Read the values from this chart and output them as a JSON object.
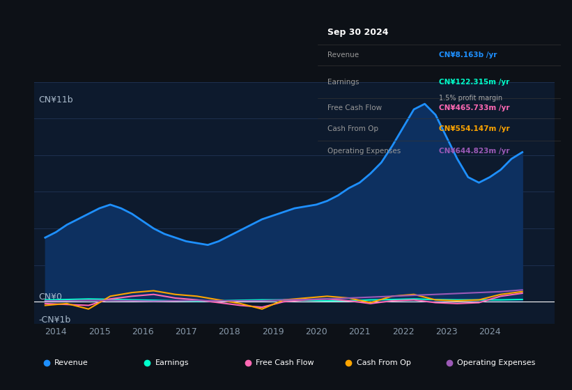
{
  "bg_color": "#0d1117",
  "chart_bg": "#0d1a2d",
  "title": "Sep 30 2024",
  "tooltip": {
    "Revenue": {
      "value": "CN¥8.163b",
      "color": "#1e90ff"
    },
    "Earnings": {
      "value": "CN¥122.315m",
      "color": "#00ffcc"
    },
    "profit_margin": "1.5% profit margin",
    "Free Cash Flow": {
      "value": "CN¥465.733m",
      "color": "#ff69b4"
    },
    "Cash From Op": {
      "value": "CN¥554.147m",
      "color": "#ffa500"
    },
    "Operating Expenses": {
      "value": "CN¥644.823m",
      "color": "#9b59b6"
    }
  },
  "ylim": [
    -1.2,
    12
  ],
  "ylabel_top": "CN¥11b",
  "ylabel_zero": "CN¥0",
  "ylabel_neg": "-CN¥1b",
  "xlim_start": 2013.5,
  "xlim_end": 2025.5,
  "xticks": [
    2014,
    2015,
    2016,
    2017,
    2018,
    2019,
    2020,
    2021,
    2022,
    2023,
    2024
  ],
  "grid_color": "#1e3050",
  "zero_line_color": "#ffffff",
  "legend": [
    {
      "label": "Revenue",
      "color": "#1e90ff"
    },
    {
      "label": "Earnings",
      "color": "#00ffcc"
    },
    {
      "label": "Free Cash Flow",
      "color": "#ff69b4"
    },
    {
      "label": "Cash From Op",
      "color": "#ffa500"
    },
    {
      "label": "Operating Expenses",
      "color": "#9b59b6"
    }
  ],
  "revenue": {
    "x": [
      2013.75,
      2014.0,
      2014.25,
      2014.5,
      2014.75,
      2015.0,
      2015.25,
      2015.5,
      2015.75,
      2016.0,
      2016.25,
      2016.5,
      2016.75,
      2017.0,
      2017.25,
      2017.5,
      2017.75,
      2018.0,
      2018.25,
      2018.5,
      2018.75,
      2019.0,
      2019.25,
      2019.5,
      2019.75,
      2020.0,
      2020.25,
      2020.5,
      2020.75,
      2021.0,
      2021.25,
      2021.5,
      2021.75,
      2022.0,
      2022.25,
      2022.5,
      2022.75,
      2023.0,
      2023.25,
      2023.5,
      2023.75,
      2024.0,
      2024.25,
      2024.5,
      2024.75
    ],
    "y": [
      3.5,
      3.8,
      4.2,
      4.5,
      4.8,
      5.1,
      5.3,
      5.1,
      4.8,
      4.4,
      4.0,
      3.7,
      3.5,
      3.3,
      3.2,
      3.1,
      3.3,
      3.6,
      3.9,
      4.2,
      4.5,
      4.7,
      4.9,
      5.1,
      5.2,
      5.3,
      5.5,
      5.8,
      6.2,
      6.5,
      7.0,
      7.6,
      8.5,
      9.5,
      10.5,
      10.8,
      10.2,
      9.0,
      7.8,
      6.8,
      6.5,
      6.8,
      7.2,
      7.8,
      8.163
    ],
    "color": "#1e90ff",
    "fill_color": "#0d3060",
    "linewidth": 2.0
  },
  "earnings": {
    "x": [
      2013.75,
      2014.25,
      2014.75,
      2015.25,
      2015.75,
      2016.25,
      2016.75,
      2017.25,
      2017.75,
      2018.25,
      2018.75,
      2019.25,
      2019.75,
      2020.25,
      2020.75,
      2021.25,
      2021.75,
      2022.25,
      2022.75,
      2023.25,
      2023.75,
      2024.25,
      2024.75
    ],
    "y": [
      0.1,
      0.12,
      0.15,
      0.13,
      0.1,
      0.08,
      0.05,
      0.03,
      0.05,
      0.08,
      0.1,
      0.1,
      0.08,
      0.05,
      0.05,
      0.1,
      0.12,
      0.15,
      0.12,
      0.1,
      0.1,
      0.1,
      0.122
    ],
    "color": "#00ffcc",
    "linewidth": 1.5
  },
  "free_cash_flow": {
    "x": [
      2013.75,
      2014.25,
      2014.75,
      2015.25,
      2015.75,
      2016.25,
      2016.75,
      2017.25,
      2017.75,
      2018.25,
      2018.75,
      2019.25,
      2019.75,
      2020.25,
      2020.75,
      2021.25,
      2021.75,
      2022.25,
      2022.75,
      2023.25,
      2023.75,
      2024.25,
      2024.75
    ],
    "y": [
      -0.1,
      -0.15,
      -0.2,
      0.15,
      0.3,
      0.4,
      0.2,
      0.1,
      -0.05,
      -0.2,
      -0.3,
      0.0,
      0.1,
      0.15,
      0.05,
      -0.1,
      0.05,
      0.1,
      -0.05,
      -0.1,
      -0.05,
      0.3,
      0.465
    ],
    "color": "#ff69b4",
    "linewidth": 1.5
  },
  "cash_from_op": {
    "x": [
      2013.75,
      2014.25,
      2014.75,
      2015.25,
      2015.75,
      2016.25,
      2016.75,
      2017.25,
      2017.75,
      2018.25,
      2018.75,
      2019.25,
      2019.75,
      2020.25,
      2020.75,
      2021.25,
      2021.75,
      2022.25,
      2022.75,
      2023.25,
      2023.75,
      2024.25,
      2024.75
    ],
    "y": [
      -0.2,
      -0.1,
      -0.4,
      0.3,
      0.5,
      0.6,
      0.4,
      0.3,
      0.1,
      -0.1,
      -0.4,
      0.1,
      0.2,
      0.3,
      0.2,
      -0.05,
      0.3,
      0.4,
      0.1,
      0.05,
      0.1,
      0.4,
      0.554
    ],
    "color": "#ffa500",
    "linewidth": 1.5
  },
  "operating_expenses": {
    "x": [
      2013.75,
      2014.25,
      2014.75,
      2015.25,
      2015.75,
      2016.25,
      2016.75,
      2017.25,
      2017.75,
      2018.25,
      2018.75,
      2019.25,
      2019.75,
      2020.25,
      2020.75,
      2021.25,
      2021.75,
      2022.25,
      2022.75,
      2023.25,
      2023.75,
      2024.25,
      2024.75
    ],
    "y": [
      0.05,
      0.05,
      0.08,
      0.07,
      0.05,
      0.03,
      0.05,
      0.07,
      0.05,
      0.05,
      0.05,
      0.1,
      0.12,
      0.15,
      0.2,
      0.25,
      0.3,
      0.35,
      0.4,
      0.45,
      0.5,
      0.55,
      0.644
    ],
    "color": "#9b59b6",
    "linewidth": 1.5
  },
  "tooltip_divider_color": "#333333",
  "tooltip_label_color": "#999999",
  "tooltip_text_color": "white",
  "legend_bg": "#1a1f2e"
}
